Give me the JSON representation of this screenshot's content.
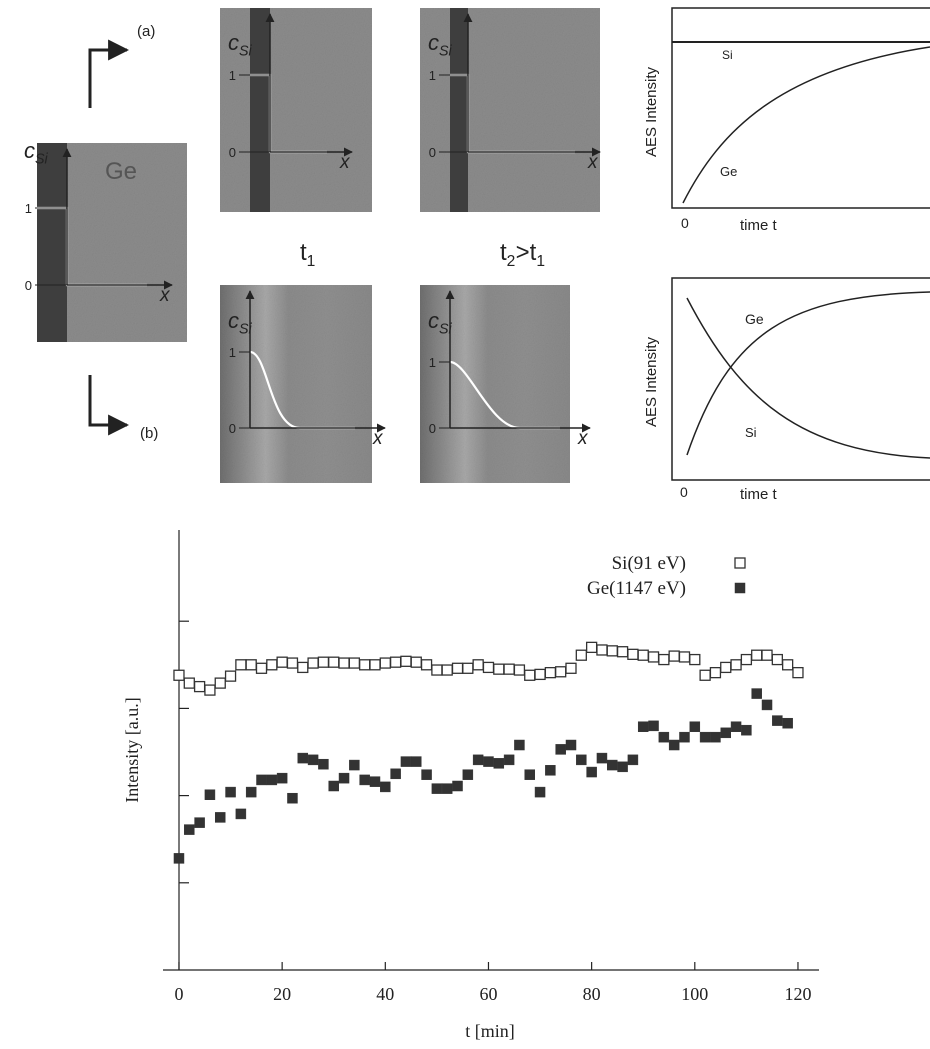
{
  "diagram": {
    "arrow_a": "(a)",
    "arrow_b": "(b)",
    "initial_panel": {
      "material": "Ge",
      "axis_label": {
        "main": "c",
        "sub": "Si"
      },
      "one": "1",
      "zero": "0",
      "x_label": "x"
    },
    "profile_panels": [
      {
        "axis_label": {
          "main": "c",
          "sub": "Si"
        },
        "one": "1",
        "zero": "0",
        "x_label": "x"
      },
      {
        "axis_label": {
          "main": "c",
          "sub": "Si"
        },
        "one": "1",
        "zero": "0",
        "x_label": "x"
      },
      {
        "axis_label": {
          "main": "c",
          "sub": "Si"
        },
        "one": "1",
        "zero": "0",
        "x_label": "x"
      },
      {
        "axis_label": {
          "main": "c",
          "sub": "Si"
        },
        "one": "1",
        "zero": "0",
        "x_label": "x"
      }
    ],
    "time_labels": [
      [
        {
          "text": "t"
        },
        {
          "text": "1",
          "sub": true
        }
      ],
      [
        {
          "text": "t"
        },
        {
          "text": "2",
          "sub": true
        },
        {
          "text": ">t"
        },
        {
          "text": "1",
          "sub": true
        }
      ]
    ],
    "aes_plots": [
      {
        "ylabel": "AES Intensity",
        "xlabel": "time t",
        "origin": "0",
        "si_label": "Si",
        "ge_label": "Ge"
      },
      {
        "ylabel": "AES Intensity",
        "xlabel": "time t",
        "origin": "0",
        "si_label": "Si",
        "ge_label": "Ge"
      }
    ]
  },
  "chart_data": {
    "type": "scatter",
    "xlabel": "t [min]",
    "ylabel": "Intensity [a.u.]",
    "xlim": [
      -3,
      124
    ],
    "xticks": [
      0,
      20,
      40,
      60,
      80,
      100,
      120
    ],
    "ylim": [
      0,
      5
    ],
    "yticks": [
      1,
      2,
      3,
      4
    ],
    "series": [
      {
        "name": "Si(91 eV)",
        "marker": "open",
        "color": "#333333",
        "x": [
          0,
          2,
          4,
          6,
          8,
          10,
          12,
          14,
          16,
          18,
          20,
          22,
          24,
          26,
          28,
          30,
          32,
          34,
          36,
          38,
          40,
          42,
          44,
          46,
          48,
          50,
          52,
          54,
          56,
          58,
          60,
          62,
          64,
          66,
          68,
          70,
          72,
          74,
          76,
          78,
          80,
          82,
          84,
          86,
          88,
          90,
          92,
          94,
          96,
          98,
          100,
          102,
          104,
          106,
          108,
          110,
          112,
          114,
          116,
          118,
          120
        ],
        "values": [
          3.38,
          3.29,
          3.25,
          3.21,
          3.29,
          3.37,
          3.5,
          3.5,
          3.46,
          3.5,
          3.53,
          3.52,
          3.47,
          3.52,
          3.53,
          3.53,
          3.52,
          3.52,
          3.5,
          3.5,
          3.52,
          3.53,
          3.54,
          3.53,
          3.5,
          3.44,
          3.44,
          3.46,
          3.46,
          3.5,
          3.47,
          3.45,
          3.45,
          3.44,
          3.38,
          3.39,
          3.41,
          3.42,
          3.46,
          3.61,
          3.7,
          3.67,
          3.66,
          3.65,
          3.62,
          3.61,
          3.59,
          3.56,
          3.6,
          3.59,
          3.56,
          3.38,
          3.41,
          3.47,
          3.5,
          3.56,
          3.61,
          3.61,
          3.56,
          3.5,
          3.41
        ]
      },
      {
        "name": "Ge(1147 eV)",
        "marker": "filled",
        "color": "#333333",
        "x": [
          0,
          2,
          4,
          6,
          8,
          10,
          12,
          14,
          16,
          18,
          20,
          22,
          24,
          26,
          28,
          30,
          32,
          34,
          36,
          38,
          40,
          42,
          44,
          46,
          48,
          50,
          52,
          54,
          56,
          58,
          60,
          62,
          64,
          66,
          68,
          70,
          72,
          74,
          76,
          78,
          80,
          82,
          84,
          86,
          88,
          90,
          92,
          94,
          96,
          98,
          100,
          102,
          104,
          106,
          108,
          110,
          112,
          114,
          116,
          118
        ],
        "values": [
          1.28,
          1.61,
          1.69,
          2.01,
          1.75,
          2.04,
          1.79,
          2.04,
          2.18,
          2.18,
          2.2,
          1.97,
          2.43,
          2.41,
          2.36,
          2.11,
          2.2,
          2.35,
          2.18,
          2.16,
          2.1,
          2.25,
          2.39,
          2.39,
          2.24,
          2.08,
          2.08,
          2.11,
          2.24,
          2.41,
          2.39,
          2.37,
          2.41,
          2.58,
          2.24,
          2.04,
          2.29,
          2.53,
          2.58,
          2.41,
          2.27,
          2.43,
          2.35,
          2.33,
          2.41,
          2.79,
          2.8,
          2.67,
          2.58,
          2.67,
          2.79,
          2.67,
          2.67,
          2.72,
          2.79,
          2.75,
          3.17,
          3.04,
          2.86,
          2.83
        ]
      }
    ]
  }
}
